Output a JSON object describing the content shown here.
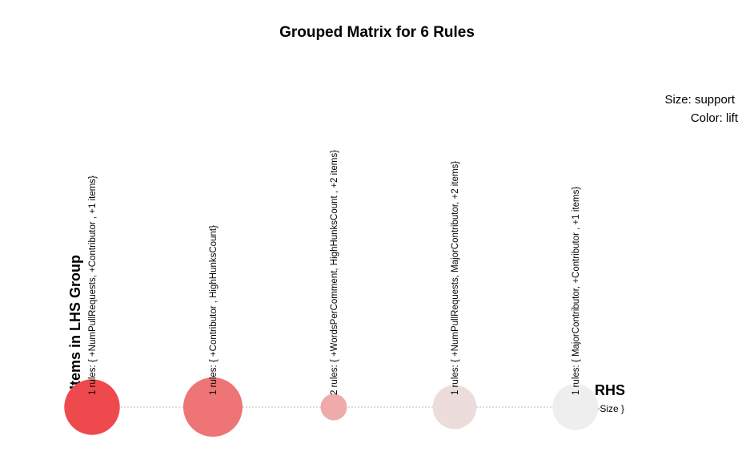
{
  "chart_data": {
    "type": "scatter",
    "title": "Grouped Matrix for 6 Rules",
    "legend": {
      "size_label": "Size: support",
      "color_label": "Color: lift"
    },
    "xlabel": "Items in LHS Group",
    "ylabel": "RHS",
    "rhs_items": [
      "{ +Size }"
    ],
    "groups": [
      {
        "label": "1 rules: {  +NumPullRequests,  +Contributor , +1 items}",
        "rhs": "{ +Size }",
        "support_rel": 0.88,
        "color": "#ee4a4e"
      },
      {
        "label": "1 rules: {  +Contributor ,   HighHunksCount}",
        "rhs": "{ +Size }",
        "support_rel": 1.0,
        "color": "#ee7475"
      },
      {
        "label": "2 rules: {  +WordsPerComment,  HighHunksCount ,  +2 items}",
        "rhs": "{ +Size }",
        "support_rel": 0.2,
        "color": "#efaaab"
      },
      {
        "label": "1 rules: {  +NumPullRequests,  MajorContributor, +2 items}",
        "rhs": "{ +Size }",
        "support_rel": 0.55,
        "color": "#ecdcdc"
      },
      {
        "label": "1 rules: {  MajorContributor,  +Contributor , +1 items}",
        "rhs": "{ +Size }",
        "support_rel": 0.6,
        "color": "#eeeeee"
      }
    ]
  }
}
